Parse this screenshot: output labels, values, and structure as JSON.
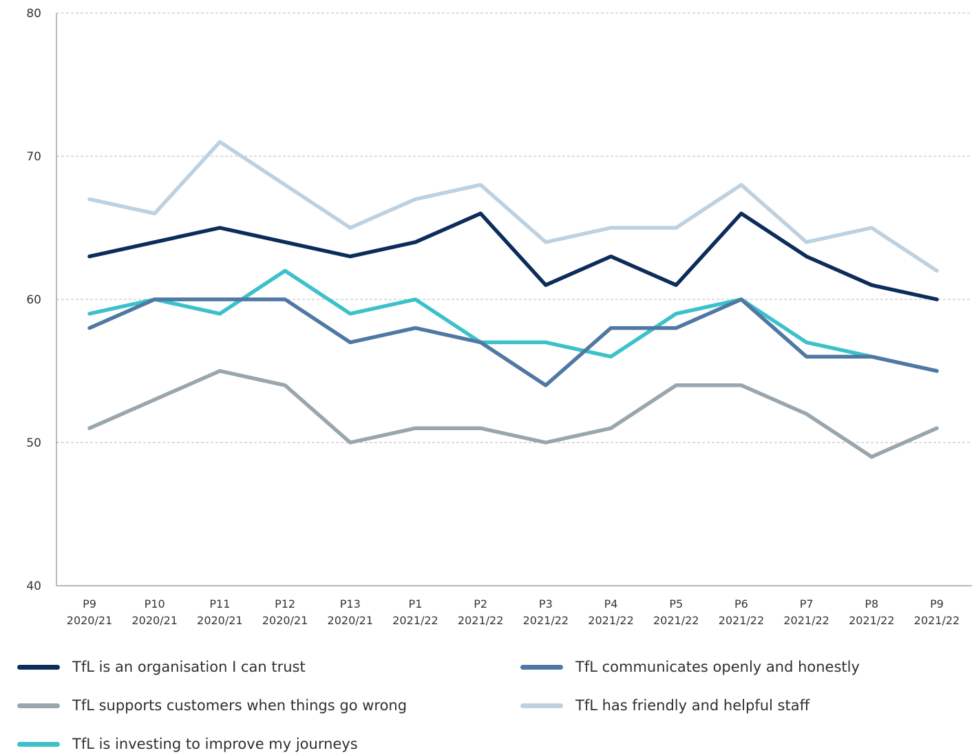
{
  "chart_data": {
    "type": "line",
    "title": "",
    "xlabel": "",
    "ylabel": "",
    "ylim": [
      40,
      80
    ],
    "yticks": [
      40,
      50,
      60,
      70,
      80
    ],
    "grid": true,
    "legend_position": "bottom",
    "categories": [
      [
        "P9",
        "2020/21"
      ],
      [
        "P10",
        "2020/21"
      ],
      [
        "P11",
        "2020/21"
      ],
      [
        "P12",
        "2020/21"
      ],
      [
        "P13",
        "2020/21"
      ],
      [
        "P1",
        "2021/22"
      ],
      [
        "P2",
        "2021/22"
      ],
      [
        "P3",
        "2021/22"
      ],
      [
        "P4",
        "2021/22"
      ],
      [
        "P5",
        "2021/22"
      ],
      [
        "P6",
        "2021/22"
      ],
      [
        "P7",
        "2021/22"
      ],
      [
        "P8",
        "2021/22"
      ],
      [
        "P9",
        "2021/22"
      ]
    ],
    "series": [
      {
        "name": "TfL has friendly and helpful staff",
        "color": "#bdd1e1",
        "values": [
          67,
          66,
          71,
          68,
          65,
          67,
          68,
          64,
          65,
          65,
          68,
          64,
          65,
          62
        ]
      },
      {
        "name": "TfL supports customers when things go wrong",
        "color": "#9aa6ad",
        "values": [
          51,
          53,
          55,
          54,
          50,
          51,
          51,
          50,
          51,
          54,
          54,
          52,
          49,
          51
        ]
      },
      {
        "name": "TfL is investing to improve my journeys",
        "color": "#3cc1cb",
        "values": [
          59,
          60,
          59,
          62,
          59,
          60,
          57,
          57,
          56,
          59,
          60,
          57,
          56,
          55
        ]
      },
      {
        "name": "TfL communicates openly and honestly",
        "color": "#4f79a2",
        "values": [
          58,
          60,
          60,
          60,
          57,
          58,
          57,
          54,
          58,
          58,
          60,
          56,
          56,
          55
        ]
      },
      {
        "name": "TfL is an organisation I can trust",
        "color": "#0c2c5a",
        "values": [
          63,
          64,
          65,
          64,
          63,
          64,
          66,
          61,
          63,
          61,
          66,
          63,
          61,
          60
        ]
      }
    ]
  },
  "legend": [
    {
      "label": "TfL is an organisation I can trust",
      "color": "#0c2c5a"
    },
    {
      "label": "TfL communicates openly and honestly",
      "color": "#4f79a2"
    },
    {
      "label": "TfL supports customers when things go wrong",
      "color": "#9aa6ad"
    },
    {
      "label": "TfL has friendly and helpful staff",
      "color": "#bdd1e1"
    },
    {
      "label": "TfL is investing to improve my journeys",
      "color": "#3cc1cb"
    }
  ]
}
